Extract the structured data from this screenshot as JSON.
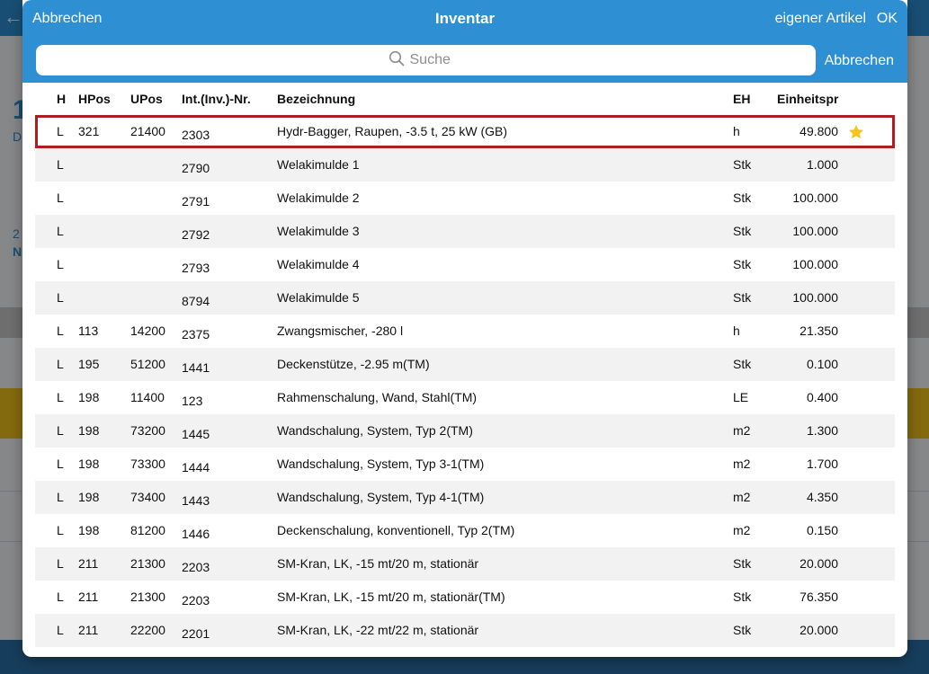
{
  "modal": {
    "cancel_label": "Abbrechen",
    "title": "Inventar",
    "own_item_label": "eigener Artikel",
    "ok_label": "OK"
  },
  "search": {
    "placeholder": "Suche",
    "cancel_label": "Abbrechen"
  },
  "table": {
    "columns": {
      "h": "H",
      "hpos": "HPos",
      "upos": "UPos",
      "inv": "Int.(Inv.)-Nr.",
      "bez": "Bezeichnung",
      "eh": "EH",
      "price": "Einheitspr"
    },
    "rows": [
      {
        "h": "L",
        "hpos": "321",
        "upos": "21400",
        "inv": "2303",
        "bez": "Hydr-Bagger, Raupen, -3.5 t, 25 kW (GB)",
        "eh": "h",
        "price": "49.800",
        "favorite": true,
        "selected": true
      },
      {
        "h": "L",
        "hpos": "",
        "upos": "",
        "inv": "2790",
        "bez": "Welakimulde 1",
        "eh": "Stk",
        "price": "1.000"
      },
      {
        "h": "L",
        "hpos": "",
        "upos": "",
        "inv": "2791",
        "bez": "Welakimulde 2",
        "eh": "Stk",
        "price": "100.000"
      },
      {
        "h": "L",
        "hpos": "",
        "upos": "",
        "inv": "2792",
        "bez": "Welakimulde 3",
        "eh": "Stk",
        "price": "100.000"
      },
      {
        "h": "L",
        "hpos": "",
        "upos": "",
        "inv": "2793",
        "bez": "Welakimulde 4",
        "eh": "Stk",
        "price": "100.000"
      },
      {
        "h": "L",
        "hpos": "",
        "upos": "",
        "inv": "8794",
        "bez": "Welakimulde 5",
        "eh": "Stk",
        "price": "100.000"
      },
      {
        "h": "L",
        "hpos": "113",
        "upos": "14200",
        "inv": "2375",
        "bez": "Zwangsmischer, -280 l",
        "eh": "h",
        "price": "21.350"
      },
      {
        "h": "L",
        "hpos": "195",
        "upos": "51200",
        "inv": "1441",
        "bez": "Deckenstütze, -2.95 m(TM)",
        "eh": "Stk",
        "price": "0.100"
      },
      {
        "h": "L",
        "hpos": "198",
        "upos": "11400",
        "inv": "123",
        "bez": "Rahmenschalung, Wand, Stahl(TM)",
        "eh": "LE",
        "price": "0.400"
      },
      {
        "h": "L",
        "hpos": "198",
        "upos": "73200",
        "inv": "1445",
        "bez": "Wandschalung, System, Typ 2(TM)",
        "eh": "m2",
        "price": "1.300"
      },
      {
        "h": "L",
        "hpos": "198",
        "upos": "73300",
        "inv": "1444",
        "bez": "Wandschalung, System, Typ 3-1(TM)",
        "eh": "m2",
        "price": "1.700"
      },
      {
        "h": "L",
        "hpos": "198",
        "upos": "73400",
        "inv": "1443",
        "bez": "Wandschalung, System, Typ 4-1(TM)",
        "eh": "m2",
        "price": "4.350"
      },
      {
        "h": "L",
        "hpos": "198",
        "upos": "81200",
        "inv": "1446",
        "bez": "Deckenschalung, konventionell, Typ 2(TM)",
        "eh": "m2",
        "price": "0.150"
      },
      {
        "h": "L",
        "hpos": "211",
        "upos": "21300",
        "inv": "2203",
        "bez": "SM-Kran, LK, -15 mt/20 m, stationär",
        "eh": "Stk",
        "price": "20.000"
      },
      {
        "h": "L",
        "hpos": "211",
        "upos": "21300",
        "inv": "2203",
        "bez": "SM-Kran, LK, -15 mt/20 m, stationär(TM)",
        "eh": "Stk",
        "price": "76.350"
      },
      {
        "h": "L",
        "hpos": "211",
        "upos": "22200",
        "inv": "2201",
        "bez": "SM-Kran, LK, -22 mt/22 m, stationär",
        "eh": "Stk",
        "price": "20.000"
      }
    ]
  },
  "background": {
    "frag1": "1",
    "frag2": "D",
    "frag3": "2",
    "frag4": "N"
  },
  "colors": {
    "accent": "#2e8fd3",
    "selection_border": "#b01c22",
    "star": "#f5c518"
  }
}
